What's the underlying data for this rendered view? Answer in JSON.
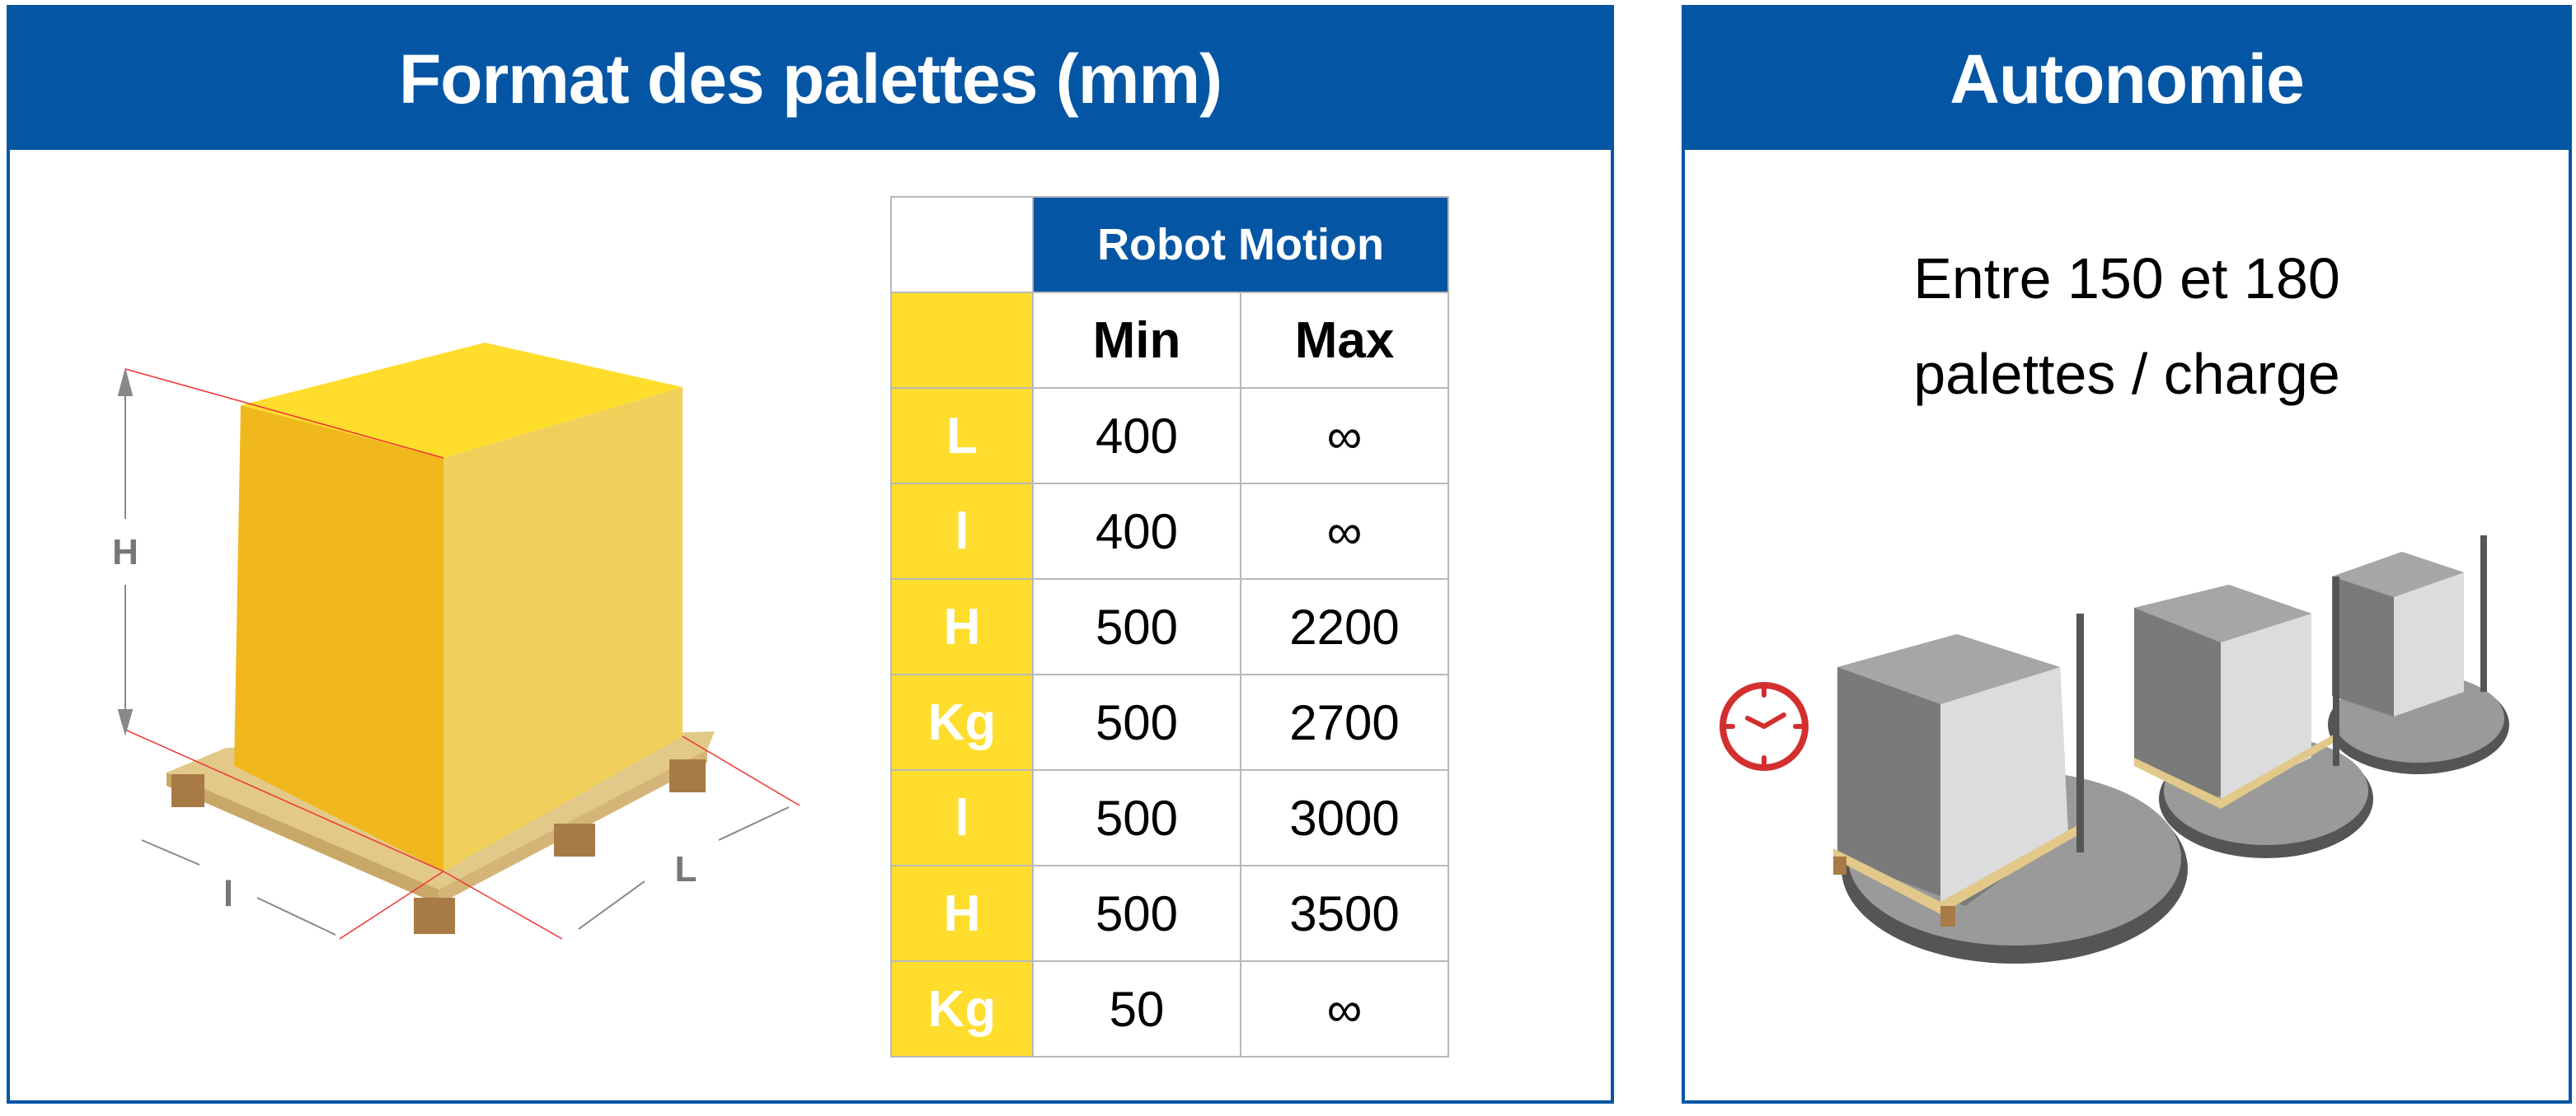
{
  "left_panel": {
    "title": "Format des palettes (mm)",
    "dimension_labels": {
      "height": "H",
      "width": "l",
      "length": "L"
    },
    "table": {
      "group_header": "Robot Motion",
      "columns": [
        "Min",
        "Max"
      ],
      "rows": [
        {
          "label": "L",
          "min": "400",
          "max": "∞"
        },
        {
          "label": "l",
          "min": "400",
          "max": "∞"
        },
        {
          "label": "H",
          "min": "500",
          "max": "2200"
        },
        {
          "label": "Kg",
          "min": "500",
          "max": "2700"
        },
        {
          "label": "l",
          "min": "500",
          "max": "3000"
        },
        {
          "label": "H",
          "min": "500",
          "max": "3500"
        },
        {
          "label": "Kg",
          "min": "50",
          "max": "∞"
        }
      ]
    }
  },
  "right_panel": {
    "title": "Autonomie",
    "line1": "Entre 150 et 180",
    "line2": "palettes / charge",
    "icon": "clock-icon"
  },
  "colors": {
    "brand_blue": "#0456a5",
    "yellow": "#fedd2c",
    "clock_red": "#d32f2f"
  }
}
